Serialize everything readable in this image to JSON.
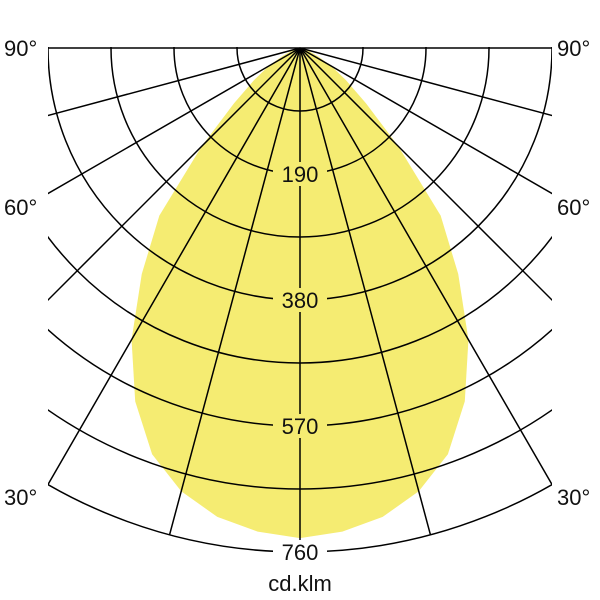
{
  "chart_data": {
    "type": "polar",
    "unit_label": "cd.klm",
    "radial_ticks": [
      "190",
      "380",
      "570",
      "760"
    ],
    "radial_max": 760,
    "radial_minor_step": 95,
    "angle_labels": {
      "left": [
        "90°",
        "60°",
        "30°"
      ],
      "right": [
        "90°",
        "60°",
        "30°"
      ]
    },
    "angle_step_deg": 15,
    "fill_color": "#f5ec72",
    "symmetric": true,
    "series": [
      {
        "angles_deg": [
          0,
          5,
          10,
          15,
          20,
          25,
          30,
          35,
          40,
          45,
          50,
          55,
          60,
          65,
          70,
          75,
          80,
          85,
          90
        ],
        "values": [
          739,
          732,
          718,
          692,
          652,
          588,
          508,
          416,
          330,
          210,
          130,
          85,
          55,
          30,
          15,
          6,
          2,
          0,
          0
        ]
      }
    ]
  }
}
